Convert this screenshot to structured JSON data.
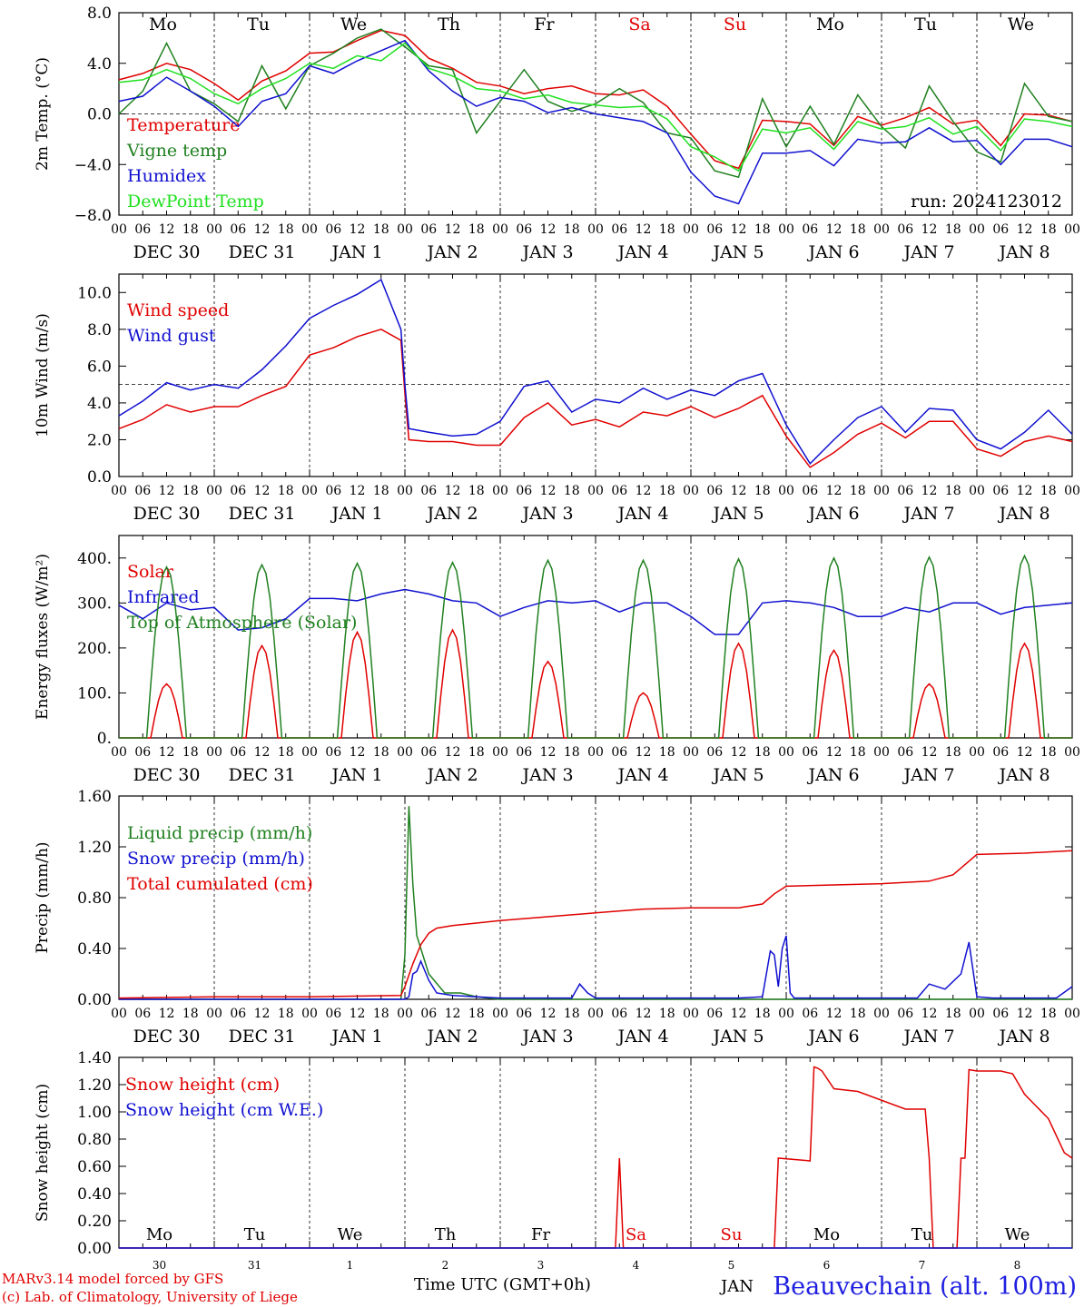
{
  "header": {
    "run_label": "run: 2024123012"
  },
  "footer": {
    "model_line": "MARv3.14 model forced by GFS",
    "lab_line": "(c) Lab. of Climatology, University of Liege",
    "time_axis_label": "Time UTC (GMT+0h)",
    "station": "Beauvechain (alt. 100m)",
    "overlap_text": "JAN"
  },
  "colors": {
    "red": "#e00000",
    "green": "#208020",
    "blue": "#1010d0",
    "light_green": "#20e020",
    "weekend": "#e00000"
  },
  "days": {
    "weekday_labels": [
      "Mo",
      "Tu",
      "We",
      "Th",
      "Fr",
      "Sa",
      "Su",
      "Mo",
      "Tu",
      "We"
    ],
    "weekend_flags": [
      false,
      false,
      false,
      false,
      false,
      true,
      true,
      false,
      false,
      false
    ],
    "date_labels": [
      "DEC 30",
      "DEC 31",
      "JAN  1",
      "JAN  2",
      "JAN  3",
      "JAN  4",
      "JAN  5",
      "JAN  6",
      "JAN  7",
      "JAN  8"
    ],
    "day_numbers": [
      "30",
      "31",
      "1",
      "2",
      "3",
      "4",
      "5",
      "6",
      "7",
      "8"
    ],
    "hour_ticks": [
      "00",
      "06",
      "12",
      "18"
    ],
    "final_hour_tick": "00"
  },
  "chart_data": [
    {
      "type": "line",
      "ylabel": "2m Temp. (°C)",
      "ylim": [
        -8,
        8
      ],
      "yticks": [
        "8.0",
        "4.0",
        "0.0",
        "−4.0",
        "−8.0"
      ],
      "reference_line": 0,
      "x_unit": "hours since DEC 30 00 UTC",
      "series": [
        {
          "name": "Temperature",
          "color": "red",
          "x": [
            0,
            6,
            12,
            18,
            24,
            30,
            36,
            42,
            48,
            54,
            60,
            66,
            72,
            78,
            84,
            90,
            96,
            102,
            108,
            114,
            120,
            126,
            132,
            138,
            144,
            150,
            156,
            162,
            168,
            174,
            180,
            186,
            192,
            198,
            204,
            210,
            216,
            222,
            228,
            234,
            240
          ],
          "y": [
            2.7,
            3.2,
            4.0,
            3.5,
            2.4,
            1.1,
            2.6,
            3.4,
            4.8,
            4.9,
            5.8,
            6.6,
            6.2,
            4.4,
            3.6,
            2.5,
            2.2,
            1.6,
            2.0,
            2.2,
            1.6,
            1.5,
            1.9,
            0.6,
            -1.6,
            -3.7,
            -4.3,
            -0.5,
            -0.6,
            -0.8,
            -2.5,
            -0.2,
            -0.9,
            -0.3,
            0.5,
            -0.8,
            -0.5,
            -2.5,
            0.0,
            -0.1,
            -0.6
          ]
        },
        {
          "name": "Vigne temp",
          "color": "green",
          "x": [
            0,
            6,
            12,
            18,
            24,
            30,
            36,
            42,
            48,
            54,
            60,
            66,
            72,
            78,
            84,
            90,
            96,
            102,
            108,
            114,
            120,
            126,
            132,
            138,
            144,
            150,
            156,
            162,
            168,
            174,
            180,
            186,
            192,
            198,
            204,
            210,
            216,
            222,
            228,
            234,
            240
          ],
          "y": [
            0.0,
            1.8,
            5.6,
            1.8,
            0.8,
            -0.6,
            3.8,
            0.4,
            3.8,
            4.8,
            6.0,
            6.7,
            5.3,
            3.8,
            3.5,
            -1.5,
            1.0,
            3.5,
            1.0,
            0.2,
            0.8,
            2.0,
            0.9,
            -1.5,
            -1.9,
            -4.5,
            -5.0,
            1.2,
            -2.6,
            0.6,
            -2.4,
            1.5,
            -1.0,
            -2.7,
            2.2,
            -0.6,
            -3.0,
            -3.8,
            2.4,
            -0.2,
            -0.6
          ]
        },
        {
          "name": "Humidex",
          "color": "blue",
          "x": [
            0,
            6,
            12,
            18,
            24,
            30,
            36,
            42,
            48,
            54,
            60,
            66,
            72,
            78,
            84,
            90,
            96,
            102,
            108,
            114,
            120,
            126,
            132,
            138,
            144,
            150,
            156,
            162,
            168,
            174,
            180,
            186,
            192,
            198,
            204,
            210,
            216,
            222,
            228,
            234,
            240
          ],
          "y": [
            1.0,
            1.4,
            2.9,
            1.8,
            0.6,
            -1.0,
            1.0,
            1.6,
            3.8,
            3.2,
            4.2,
            5.0,
            5.8,
            3.4,
            1.8,
            0.6,
            1.3,
            1.0,
            0.1,
            0.5,
            0.0,
            -0.3,
            -0.6,
            -1.5,
            -4.6,
            -6.5,
            -7.1,
            -3.1,
            -3.1,
            -2.9,
            -4.1,
            -2.0,
            -2.3,
            -2.2,
            -1.1,
            -2.2,
            -2.1,
            -4.0,
            -2.0,
            -2.0,
            -2.6
          ]
        },
        {
          "name": "DewPoint Temp",
          "color": "light_green",
          "x": [
            0,
            6,
            12,
            18,
            24,
            30,
            36,
            42,
            48,
            54,
            60,
            66,
            72,
            78,
            84,
            90,
            96,
            102,
            108,
            114,
            120,
            126,
            132,
            138,
            144,
            150,
            156,
            162,
            168,
            174,
            180,
            186,
            192,
            198,
            204,
            210,
            216,
            222,
            228,
            234,
            240
          ],
          "y": [
            2.5,
            2.7,
            3.5,
            2.8,
            1.6,
            0.8,
            2.0,
            2.8,
            4.0,
            3.6,
            4.6,
            4.2,
            5.6,
            3.6,
            3.0,
            2.0,
            1.8,
            1.2,
            1.5,
            0.9,
            0.7,
            0.5,
            0.6,
            -0.4,
            -2.6,
            -3.4,
            -4.5,
            -1.2,
            -1.5,
            -1.1,
            -2.8,
            -0.6,
            -1.2,
            -1.0,
            -0.3,
            -1.6,
            -1.0,
            -2.9,
            -0.4,
            -0.6,
            -1.0
          ]
        }
      ]
    },
    {
      "type": "line",
      "ylabel": "10m Wind (m/s)",
      "ylim": [
        0,
        11
      ],
      "yticks": [
        "10.0",
        "8.0",
        "6.0",
        "4.0",
        "2.0",
        "0.0"
      ],
      "reference_line": 5,
      "series": [
        {
          "name": "Wind speed",
          "color": "red",
          "x": [
            0,
            6,
            12,
            18,
            24,
            30,
            36,
            42,
            48,
            54,
            60,
            66,
            71,
            72,
            73,
            78,
            84,
            90,
            96,
            102,
            108,
            114,
            120,
            126,
            132,
            138,
            144,
            150,
            156,
            162,
            168,
            174,
            180,
            186,
            192,
            198,
            204,
            210,
            216,
            222,
            228,
            234,
            240
          ],
          "y": [
            2.6,
            3.1,
            3.9,
            3.5,
            3.8,
            3.8,
            4.4,
            4.9,
            6.6,
            7.0,
            7.6,
            8.0,
            7.4,
            4.5,
            2.0,
            1.9,
            1.9,
            1.7,
            1.7,
            3.2,
            4.0,
            2.8,
            3.1,
            2.7,
            3.5,
            3.3,
            3.8,
            3.2,
            3.7,
            4.4,
            2.2,
            0.5,
            1.3,
            2.3,
            2.9,
            2.1,
            3.0,
            3.0,
            1.5,
            1.1,
            1.9,
            2.2,
            1.9
          ]
        },
        {
          "name": "Wind gust",
          "color": "blue",
          "x": [
            0,
            6,
            12,
            18,
            24,
            30,
            36,
            42,
            48,
            54,
            60,
            66,
            71,
            72,
            73,
            78,
            84,
            90,
            96,
            102,
            108,
            114,
            120,
            126,
            132,
            138,
            144,
            150,
            156,
            162,
            168,
            174,
            180,
            186,
            192,
            198,
            204,
            210,
            216,
            222,
            228,
            234,
            240
          ],
          "y": [
            3.3,
            4.1,
            5.1,
            4.7,
            5.0,
            4.8,
            5.8,
            7.1,
            8.6,
            9.3,
            9.9,
            10.7,
            8.0,
            5.0,
            2.6,
            2.4,
            2.2,
            2.3,
            3.0,
            4.9,
            5.2,
            3.5,
            4.2,
            4.0,
            4.8,
            4.2,
            4.7,
            4.4,
            5.2,
            5.6,
            2.8,
            0.7,
            2.0,
            3.2,
            3.8,
            2.4,
            3.7,
            3.6,
            2.0,
            1.5,
            2.4,
            3.6,
            2.3
          ]
        }
      ]
    },
    {
      "type": "line",
      "ylabel": "Energy fluxes (W/m²)",
      "ylim": [
        0,
        450
      ],
      "yticks": [
        "400.",
        "300.",
        "200.",
        "100.",
        "0."
      ],
      "series": [
        {
          "name": "Solar",
          "color": "red",
          "peaks": [
            120,
            205,
            235,
            240,
            170,
            100,
            210,
            195,
            120,
            210
          ]
        },
        {
          "name": "Infrared",
          "color": "blue",
          "x": [
            0,
            6,
            12,
            18,
            24,
            30,
            36,
            42,
            48,
            54,
            60,
            66,
            72,
            78,
            84,
            90,
            96,
            102,
            108,
            114,
            120,
            126,
            132,
            138,
            144,
            150,
            156,
            162,
            168,
            174,
            180,
            186,
            192,
            198,
            204,
            210,
            216,
            222,
            228,
            234,
            240
          ],
          "y": [
            295,
            265,
            300,
            285,
            290,
            240,
            245,
            265,
            310,
            310,
            305,
            320,
            330,
            320,
            305,
            300,
            270,
            290,
            305,
            300,
            305,
            280,
            300,
            300,
            270,
            230,
            230,
            300,
            305,
            300,
            290,
            270,
            270,
            290,
            280,
            300,
            300,
            275,
            290,
            295,
            300
          ]
        },
        {
          "name": "Top of Atmosphere (Solar)",
          "color": "green",
          "peaks": [
            380,
            385,
            388,
            390,
            395,
            395,
            398,
            400,
            402,
            405
          ]
        }
      ]
    },
    {
      "type": "line",
      "ylabel": "Precip (mm/h)",
      "ylim": [
        0,
        1.6
      ],
      "yticks": [
        "1.60",
        "1.20",
        "0.80",
        "0.40",
        "0.00"
      ],
      "series": [
        {
          "name": "Liquid precip (mm/h)",
          "color": "green",
          "x": [
            0,
            24,
            48,
            70,
            71,
            72,
            73,
            74,
            75,
            76,
            78,
            82,
            86,
            90,
            96,
            120,
            144,
            168,
            192,
            216,
            240
          ],
          "y": [
            0,
            0,
            0,
            0,
            0,
            0.35,
            1.52,
            0.9,
            0.5,
            0.4,
            0.2,
            0.05,
            0.05,
            0.02,
            0,
            0,
            0,
            0,
            0,
            0,
            0
          ]
        },
        {
          "name": "Snow precip (mm/h)",
          "color": "blue",
          "x": [
            0,
            24,
            48,
            72,
            73,
            74,
            75,
            76,
            78,
            80,
            84,
            90,
            96,
            104,
            114,
            116,
            118,
            120,
            144,
            156,
            162,
            164,
            165,
            166,
            167,
            168,
            169,
            170,
            180,
            192,
            201,
            204,
            208,
            212,
            214,
            216,
            220,
            228,
            236,
            240
          ],
          "y": [
            0,
            0,
            0,
            0,
            0.02,
            0.2,
            0.22,
            0.3,
            0.15,
            0.05,
            0.03,
            0.02,
            0.01,
            0.01,
            0.01,
            0.12,
            0.05,
            0.01,
            0.01,
            0.01,
            0.02,
            0.38,
            0.35,
            0.1,
            0.4,
            0.5,
            0.05,
            0.01,
            0.01,
            0.01,
            0.01,
            0.12,
            0.08,
            0.2,
            0.45,
            0.02,
            0.01,
            0.01,
            0.01,
            0.1
          ]
        },
        {
          "name": "Total cumulated (cm)",
          "color": "red",
          "x": [
            0,
            24,
            48,
            71,
            72,
            74,
            76,
            78,
            80,
            84,
            90,
            96,
            108,
            120,
            132,
            144,
            156,
            162,
            165,
            168,
            180,
            192,
            204,
            210,
            216,
            228,
            240
          ],
          "y": [
            0.01,
            0.02,
            0.02,
            0.03,
            0.1,
            0.28,
            0.43,
            0.52,
            0.56,
            0.58,
            0.6,
            0.62,
            0.65,
            0.68,
            0.71,
            0.72,
            0.72,
            0.75,
            0.83,
            0.89,
            0.9,
            0.91,
            0.93,
            0.98,
            1.14,
            1.15,
            1.17
          ]
        }
      ]
    },
    {
      "type": "line",
      "ylabel": "Snow height (cm)",
      "ylim": [
        0,
        1.4
      ],
      "yticks": [
        "1.40",
        "1.20",
        "1.00",
        "0.80",
        "0.60",
        "0.40",
        "0.20",
        "0.00"
      ],
      "series": [
        {
          "name": "Snow height (cm)",
          "color": "red",
          "x": [
            0,
            24,
            48,
            72,
            96,
            120,
            125,
            126,
            127,
            168,
            165,
            166,
            174,
            175,
            176,
            177,
            180,
            186,
            198,
            203,
            204,
            205,
            206,
            210,
            211,
            212,
            213,
            214,
            216,
            222,
            225,
            228,
            234,
            238,
            240
          ],
          "y": [
            0,
            0,
            0,
            0,
            0,
            0,
            0,
            0.66,
            0,
            0,
            0,
            0.66,
            0.64,
            1.33,
            1.32,
            1.3,
            1.17,
            1.15,
            1.02,
            1.02,
            0.66,
            0,
            0,
            0,
            0,
            0.66,
            0.66,
            1.31,
            1.3,
            1.3,
            1.28,
            1.13,
            0.95,
            0.7,
            0.66
          ]
        },
        {
          "name": "Snow height (cm W.E.)",
          "color": "blue",
          "x": [
            0,
            240
          ],
          "y": [
            0,
            0
          ]
        }
      ]
    }
  ]
}
